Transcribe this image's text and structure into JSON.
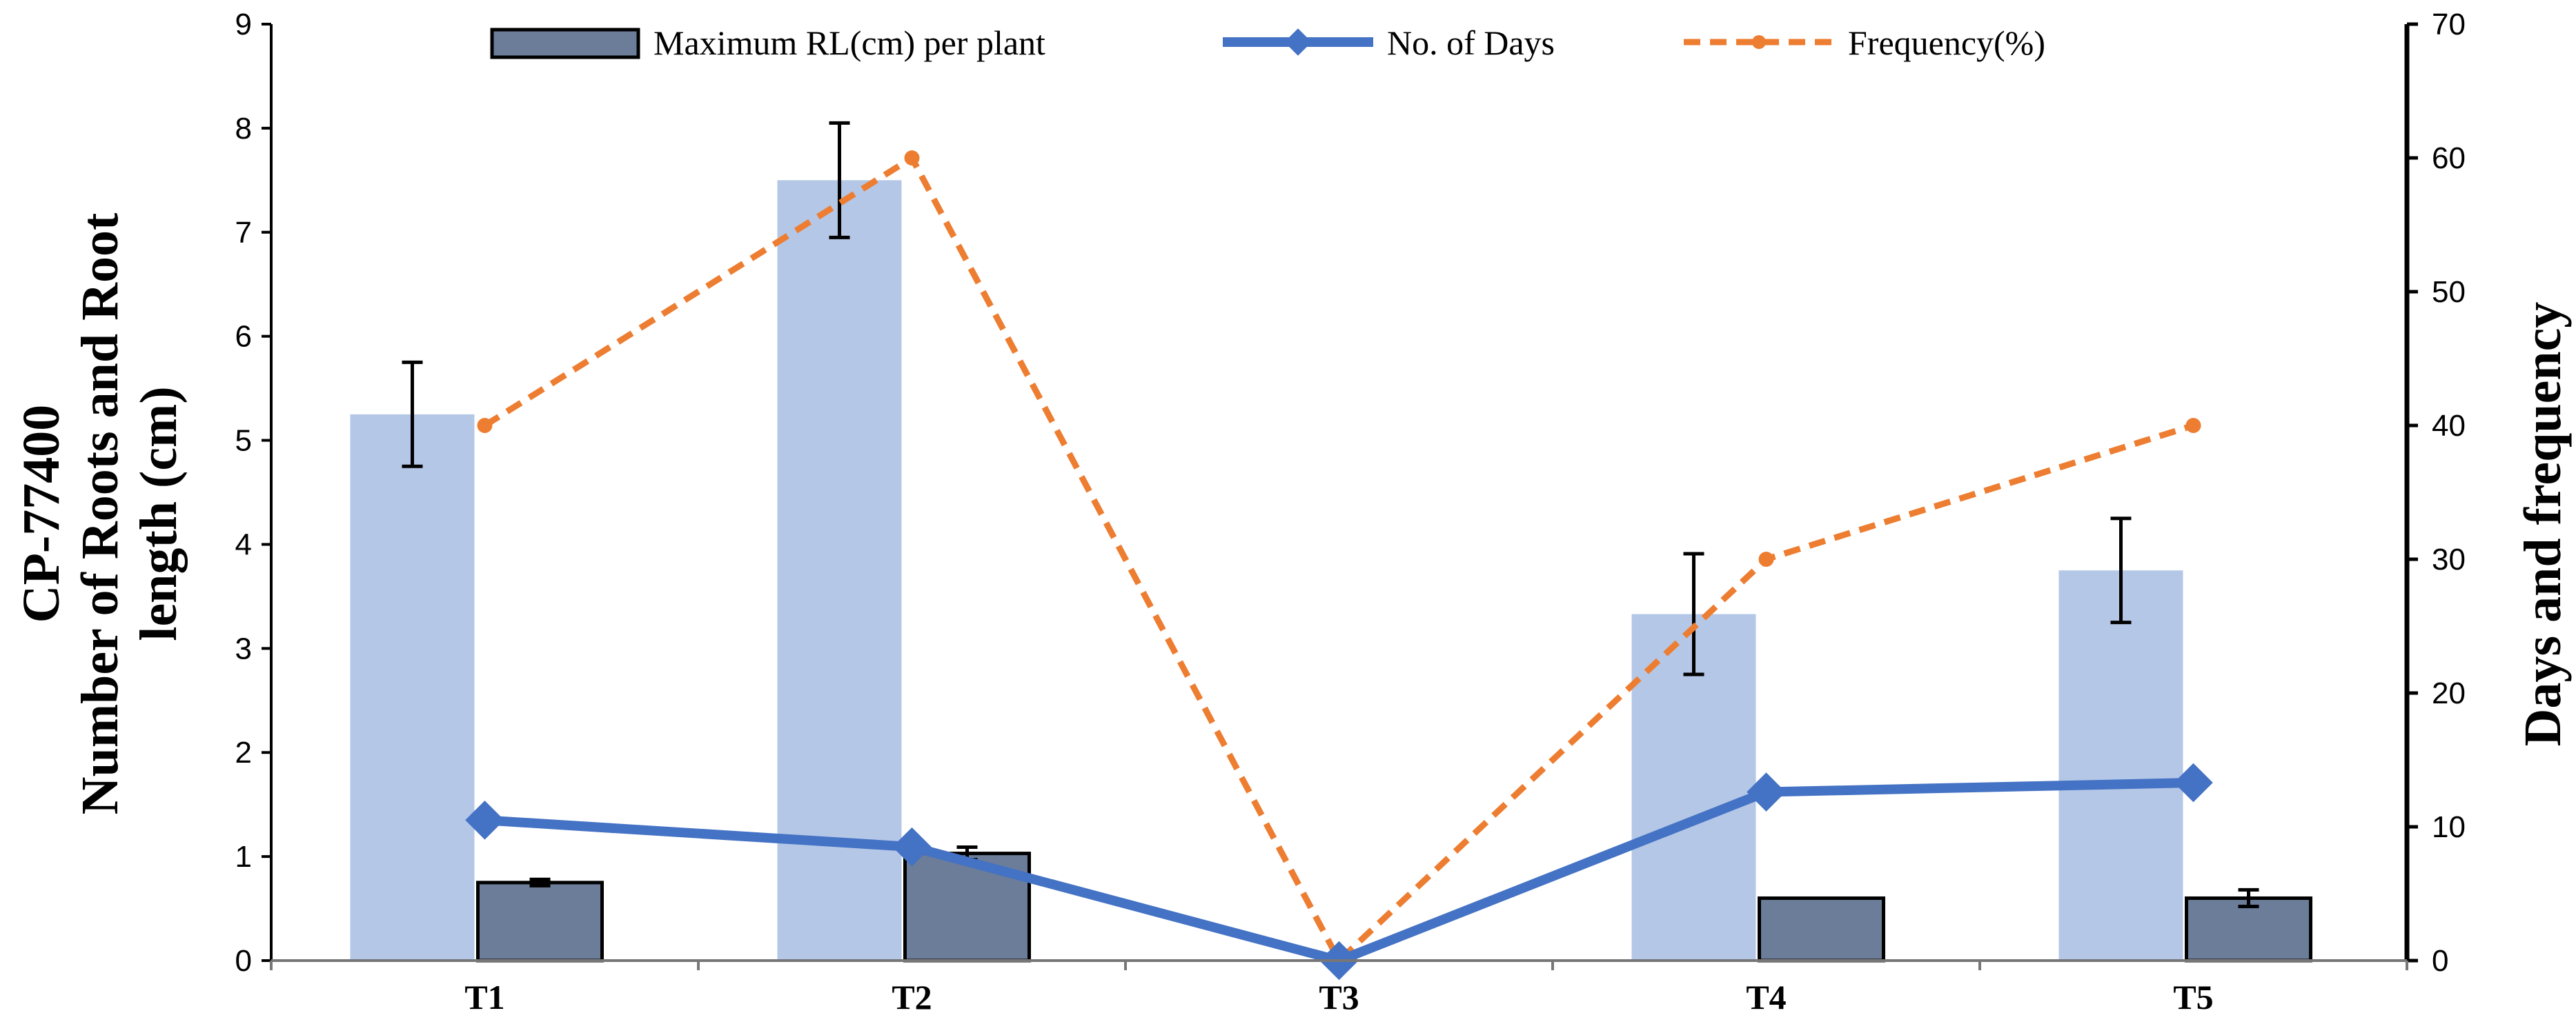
{
  "chart_data": {
    "type": "bar",
    "categories": [
      "T1",
      "T2",
      "T3",
      "T4",
      "T5"
    ],
    "series": [
      {
        "name": "Number of Roots",
        "kind": "bar",
        "axis": "left",
        "color": "#b4c7e7",
        "legend": false,
        "values": [
          5.25,
          7.5,
          0,
          3.33,
          3.75
        ],
        "errors": [
          0.5,
          0.55,
          0,
          0.58,
          0.5
        ]
      },
      {
        "name": "Maximum RL(cm) per plant",
        "kind": "bar",
        "axis": "left",
        "color": "#6b7d99",
        "legend": true,
        "values": [
          0.75,
          1.03,
          0,
          0.6,
          0.6
        ],
        "errors": [
          0.03,
          0.06,
          0,
          0.0,
          0.08
        ]
      },
      {
        "name": "No. of Days",
        "kind": "line",
        "axis": "right",
        "color": "#4472c4",
        "legend": true,
        "values": [
          10.5,
          8.5,
          0,
          12.6,
          13.3
        ]
      },
      {
        "name": "Frequency(%)",
        "kind": "dashed-line",
        "axis": "right",
        "color": "#ed7d31",
        "legend": true,
        "values": [
          40,
          60,
          0,
          30,
          40
        ]
      }
    ],
    "left_axis": {
      "title_line1": "CP-77400",
      "title_line2": "Number of Roots and Root",
      "title_line3": "length (cm)",
      "ylim": [
        0,
        9
      ],
      "ticks": [
        "0",
        "1",
        "2",
        "3",
        "4",
        "5",
        "6",
        "7",
        "8",
        "9"
      ]
    },
    "right_axis": {
      "title": "Days and frequency",
      "ylim": [
        0,
        70
      ],
      "ticks": [
        "0",
        "10",
        "20",
        "30",
        "40",
        "50",
        "60",
        "70"
      ]
    },
    "legend_position": "top-center",
    "grid": false
  }
}
